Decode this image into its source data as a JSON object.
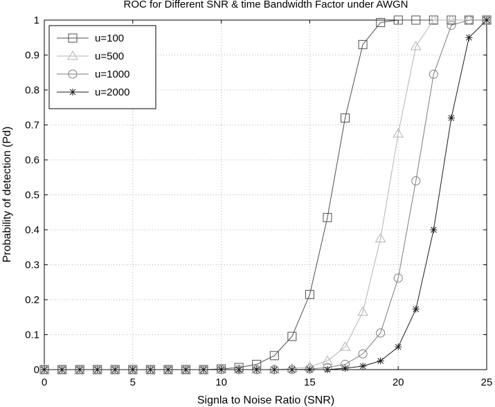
{
  "chart_data": {
    "type": "line",
    "title": "ROC for Different SNR & time Bandwidth Factor under AWGN",
    "xlabel": "Signla to Noise Ratio (SNR)",
    "ylabel": "Probability of detection (Pd)",
    "xlim": [
      0,
      25
    ],
    "ylim": [
      0,
      1
    ],
    "xticks": [
      0,
      5,
      10,
      15,
      20,
      25
    ],
    "yticks": [
      0,
      0.1,
      0.2,
      0.3,
      0.4,
      0.5,
      0.6,
      0.7,
      0.8,
      0.9,
      1
    ],
    "grid": true,
    "legend_position": "top-left",
    "x": [
      0,
      1,
      2,
      3,
      4,
      5,
      6,
      7,
      8,
      9,
      10,
      11,
      12,
      13,
      14,
      15,
      16,
      17,
      18,
      19,
      20,
      21,
      22,
      23,
      24,
      25
    ],
    "series": [
      {
        "name": "u=100",
        "marker": "square",
        "values": [
          0,
          0,
          0,
          0,
          0,
          0,
          0,
          0,
          0,
          0,
          0.002,
          0.006,
          0.015,
          0.04,
          0.095,
          0.215,
          0.435,
          0.72,
          0.93,
          0.993,
          1,
          1,
          1,
          1,
          1,
          1
        ]
      },
      {
        "name": "u=500",
        "marker": "triangle",
        "values": [
          0,
          0,
          0,
          0,
          0,
          0,
          0,
          0,
          0,
          0,
          0,
          0,
          0,
          0,
          0.003,
          0.008,
          0.025,
          0.065,
          0.165,
          0.375,
          0.675,
          0.925,
          1,
          1,
          1,
          1
        ]
      },
      {
        "name": "u=1000",
        "marker": "circle",
        "values": [
          0,
          0,
          0,
          0,
          0,
          0,
          0,
          0,
          0,
          0,
          0,
          0,
          0,
          0,
          0,
          0.002,
          0.006,
          0.015,
          0.045,
          0.105,
          0.262,
          0.54,
          0.845,
          0.985,
          1,
          1
        ]
      },
      {
        "name": "u=2000",
        "marker": "star",
        "values": [
          0,
          0,
          0,
          0,
          0,
          0,
          0,
          0,
          0,
          0,
          0,
          0,
          0,
          0,
          0,
          0,
          0,
          0.004,
          0.01,
          0.025,
          0.065,
          0.173,
          0.4,
          0.72,
          0.95,
          1
        ]
      }
    ],
    "colors": {
      "u=100": "#4d4d4d",
      "u=500": "#b3b3b3",
      "u=1000": "#7a7a7a",
      "u=2000": "#1a1a1a"
    }
  }
}
